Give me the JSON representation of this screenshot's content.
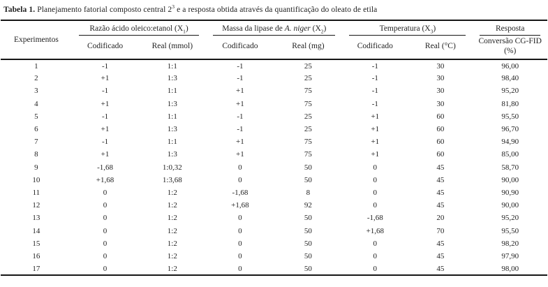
{
  "colors": {
    "text": "#1f1f1f",
    "rule": "#161616",
    "background": "#ffffff"
  },
  "title": {
    "label": "Tabela 1.",
    "text_before_sup": " Planejamento fatorial composto central 2",
    "sup": "3",
    "text_after_sup": " e a resposta obtida através da quantificação do oleato de etila"
  },
  "table": {
    "row_header": "Experimentos",
    "groups": {
      "g1": {
        "pre": "Razão ácido oleico:etanol",
        "varopen": " (X",
        "sub": "1",
        "close": ")"
      },
      "g2": {
        "pre": "Massa da lipase de ",
        "italic": "A. niger",
        "varopen": " (X",
        "sub": "2",
        "close": ")"
      },
      "g3": {
        "pre": "Temperatura",
        "varopen": " (X",
        "sub": "3",
        "close": ")"
      },
      "g4": {
        "label": "Resposta"
      }
    },
    "subheaders": {
      "x1_cod": "Codificado",
      "x1_real": "Real (mmol)",
      "x2_cod": "Codificado",
      "x2_real": "Real (mg)",
      "x3_cod": "Codificado",
      "x3_real": "Real (°C)",
      "resp_line1": "Conversão CG-FID",
      "resp_line2": "(%)"
    },
    "rows": [
      [
        "1",
        "-1",
        "1:1",
        "-1",
        "25",
        "-1",
        "30",
        "96,00"
      ],
      [
        "2",
        "+1",
        "1:3",
        "-1",
        "25",
        "-1",
        "30",
        "98,40"
      ],
      [
        "3",
        "-1",
        "1:1",
        "+1",
        "75",
        "-1",
        "30",
        "95,20"
      ],
      [
        "4",
        "+1",
        "1:3",
        "+1",
        "75",
        "-1",
        "30",
        "81,80"
      ],
      [
        "5",
        "-1",
        "1:1",
        "-1",
        "25",
        "+1",
        "60",
        "95,50"
      ],
      [
        "6",
        "+1",
        "1:3",
        "-1",
        "25",
        "+1",
        "60",
        "96,70"
      ],
      [
        "7",
        "-1",
        "1:1",
        "+1",
        "75",
        "+1",
        "60",
        "94,90"
      ],
      [
        "8",
        "+1",
        "1:3",
        "+1",
        "75",
        "+1",
        "60",
        "85,00"
      ],
      [
        "9",
        "-1,68",
        "1:0,32",
        "0",
        "50",
        "0",
        "45",
        "58,70"
      ],
      [
        "10",
        "+1,68",
        "1:3,68",
        "0",
        "50",
        "0",
        "45",
        "90,00"
      ],
      [
        "11",
        "0",
        "1:2",
        "-1,68",
        "8",
        "0",
        "45",
        "90,90"
      ],
      [
        "12",
        "0",
        "1:2",
        "+1,68",
        "92",
        "0",
        "45",
        "90,00"
      ],
      [
        "13",
        "0",
        "1:2",
        "0",
        "50",
        "-1,68",
        "20",
        "95,20"
      ],
      [
        "14",
        "0",
        "1:2",
        "0",
        "50",
        "+1,68",
        "70",
        "95,50"
      ],
      [
        "15",
        "0",
        "1:2",
        "0",
        "50",
        "0",
        "45",
        "98,20"
      ],
      [
        "16",
        "0",
        "1:2",
        "0",
        "50",
        "0",
        "45",
        "97,90"
      ],
      [
        "17",
        "0",
        "1:2",
        "0",
        "50",
        "0",
        "45",
        "98,00"
      ]
    ]
  }
}
